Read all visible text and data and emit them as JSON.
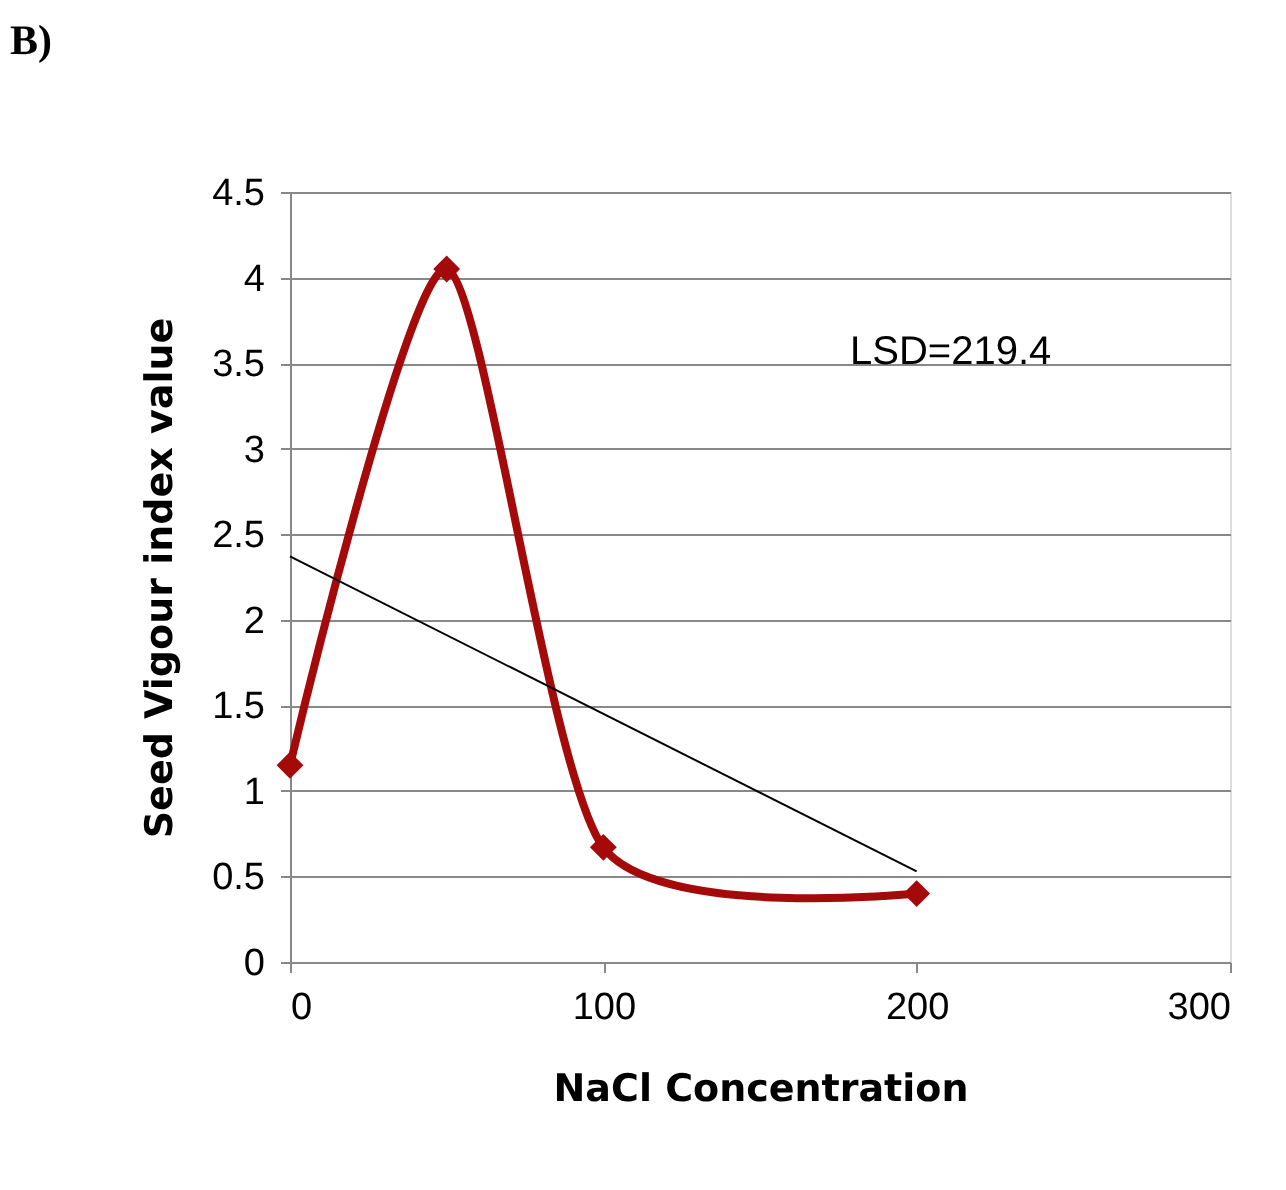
{
  "chart_data": {
    "type": "line",
    "xlabel": "NaCl Concentration",
    "ylabel": "Seed Vigour index value",
    "x": [
      0,
      50,
      100,
      200
    ],
    "series": [
      {
        "color": "#a50a0a",
        "values": [
          1.15,
          4.05,
          0.67,
          0.4
        ],
        "marker": "diamond"
      },
      {
        "type": "line",
        "color": "#000000",
        "x": [
          0,
          200
        ],
        "values": [
          2.37,
          0.53
        ],
        "marker": "none"
      }
    ],
    "xlim": [
      0,
      300
    ],
    "xticks": [
      0,
      100,
      200,
      300
    ],
    "ylim": [
      0,
      4.5
    ],
    "yticks": [
      0,
      0.5,
      1,
      1.5,
      2,
      2.5,
      3,
      3.5,
      4,
      4.5
    ],
    "grid": "y",
    "annotations": [
      "B)",
      "LSD=219.4"
    ]
  }
}
